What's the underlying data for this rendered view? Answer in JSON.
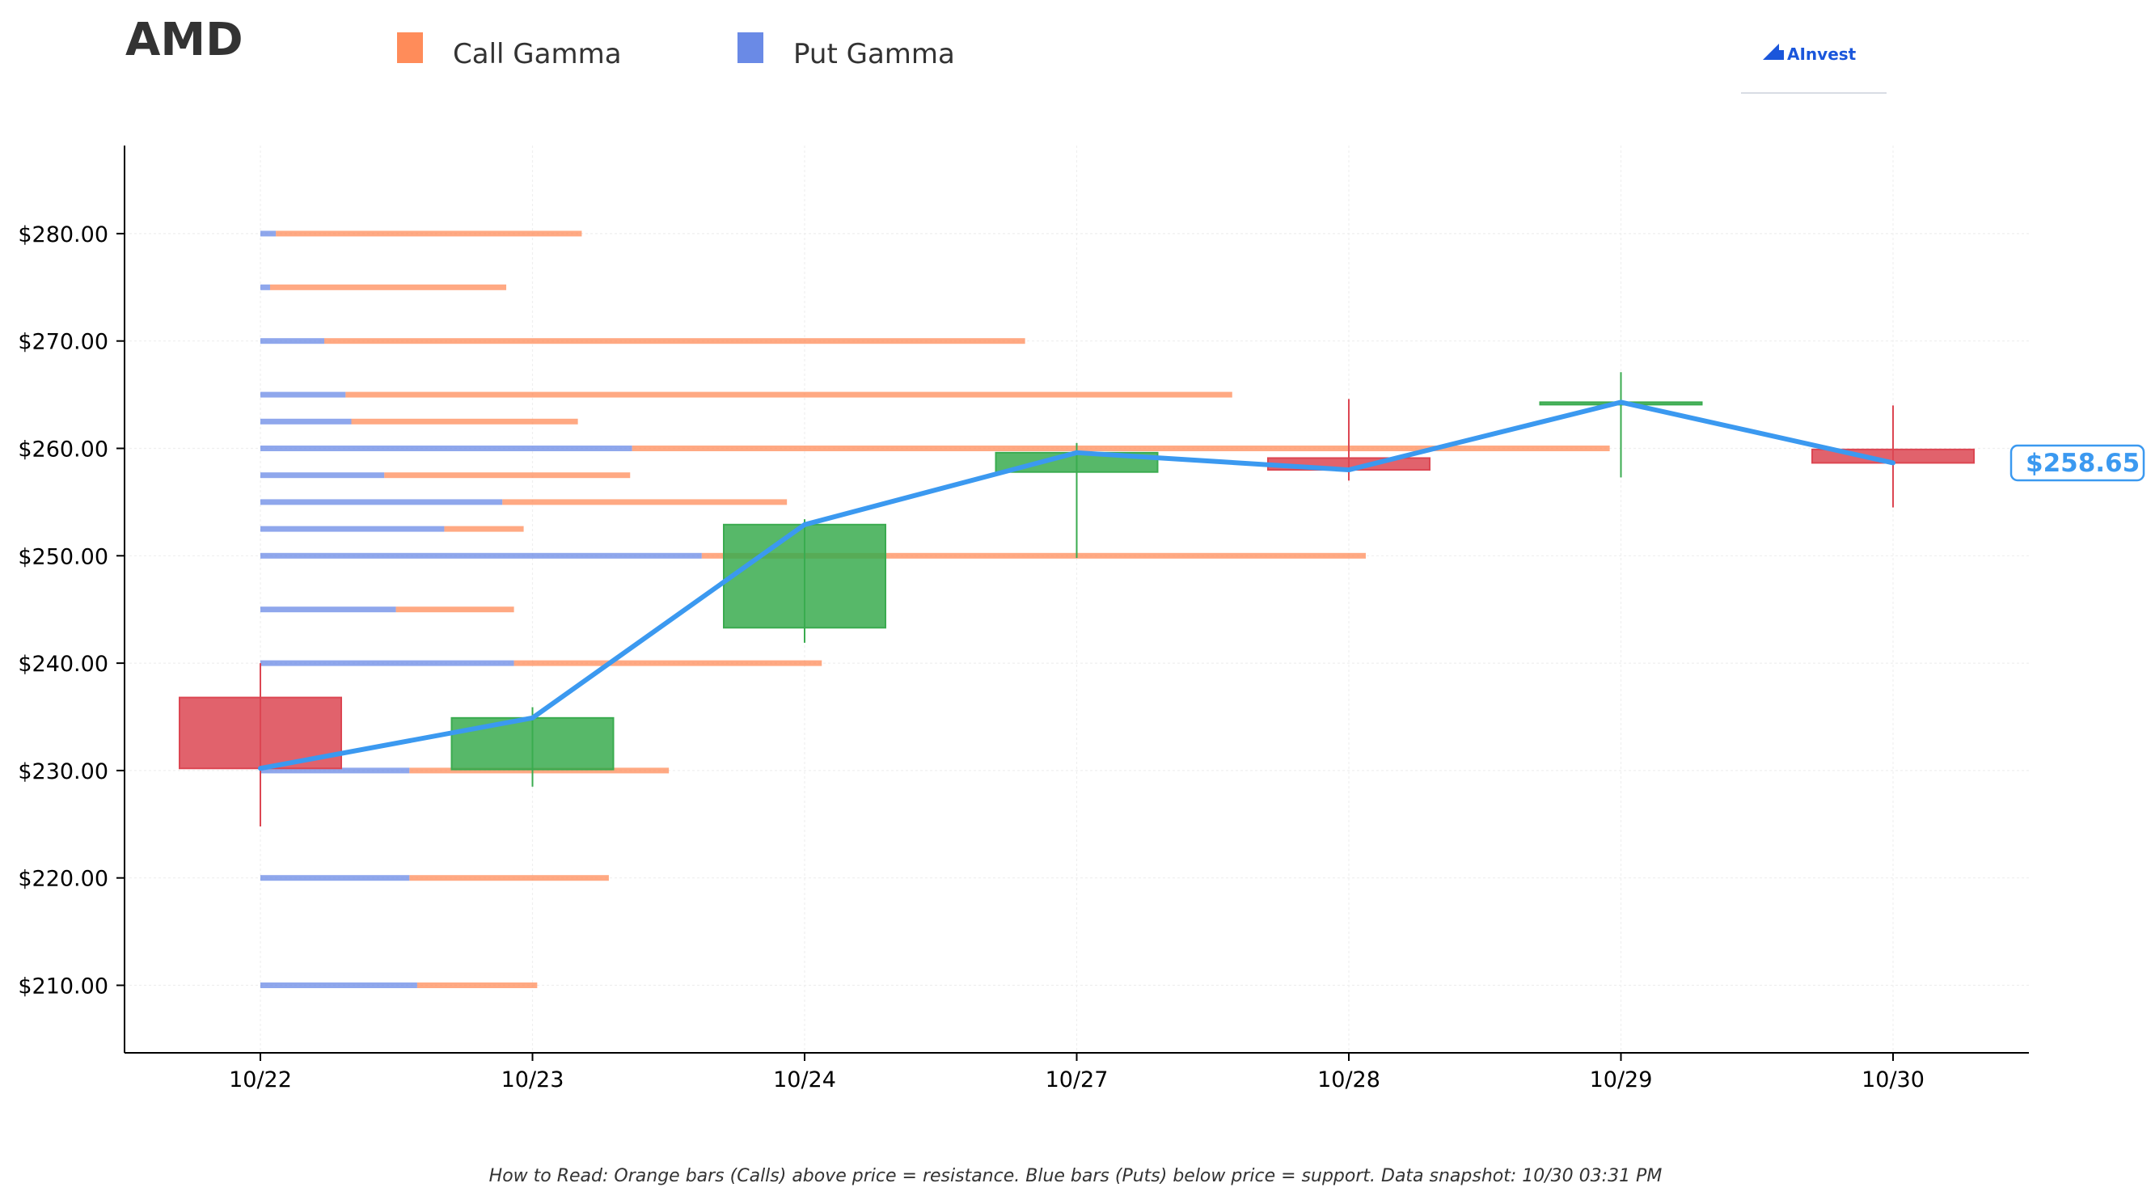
{
  "title": "AMD",
  "legend": [
    {
      "label": "Call Gamma",
      "color": "#ff8c5a"
    },
    {
      "label": "Put Gamma",
      "color": "#6a8ae6"
    }
  ],
  "logo": {
    "text": "AInvest",
    "icon": "ainvest-logo-icon"
  },
  "footer": "How to Read: Orange bars (Calls) above price = resistance. Blue bars (Puts) below price = support. Data snapshot: 10/30 03:31 PM",
  "price_tag": "$258.65",
  "colors": {
    "up": "#3aab4f",
    "down": "#dc4652",
    "price_line": "#3b99f0",
    "call": "#ff8c5a",
    "put": "#6a8ae6"
  },
  "chart_data": {
    "type": "candlestick",
    "ylim": [
      204,
      288
    ],
    "y_ticks": [
      210,
      220,
      230,
      240,
      250,
      260,
      270,
      280
    ],
    "y_tick_labels": [
      "$210.00",
      "$220.00",
      "$230.00",
      "$240.00",
      "$250.00",
      "$260.00",
      "$270.00",
      "$280.00"
    ],
    "categories": [
      "10/22",
      "10/23",
      "10/24",
      "10/27",
      "10/28",
      "10/29",
      "10/30"
    ],
    "ohlc": [
      {
        "date": "10/22",
        "open": 236.8,
        "high": 240.0,
        "low": 224.8,
        "close": 230.2
      },
      {
        "date": "10/23",
        "open": 230.1,
        "high": 235.9,
        "low": 228.5,
        "close": 234.9
      },
      {
        "date": "10/24",
        "open": 243.3,
        "high": 253.4,
        "low": 241.9,
        "close": 252.9
      },
      {
        "date": "10/27",
        "open": 257.8,
        "high": 260.5,
        "low": 249.8,
        "close": 259.6
      },
      {
        "date": "10/28",
        "open": 259.1,
        "high": 264.6,
        "low": 257.0,
        "close": 258.0
      },
      {
        "date": "10/29",
        "open": 264.1,
        "high": 267.1,
        "low": 257.3,
        "close": 264.3
      },
      {
        "date": "10/30",
        "open": 259.9,
        "high": 264.0,
        "low": 254.5,
        "close": 258.65
      }
    ],
    "price_line": [
      230.2,
      234.9,
      252.9,
      259.6,
      258.0,
      264.3,
      258.65
    ],
    "gamma": [
      {
        "strike": 280,
        "put": 0.08,
        "call": 1.58
      },
      {
        "strike": 275,
        "put": 0.05,
        "call": 1.22
      },
      {
        "strike": 270,
        "put": 0.33,
        "call": 3.62
      },
      {
        "strike": 265,
        "put": 0.44,
        "call": 4.58
      },
      {
        "strike": 262.5,
        "put": 0.47,
        "call": 1.17
      },
      {
        "strike": 260,
        "put": 1.92,
        "call": 5.05
      },
      {
        "strike": 257.5,
        "put": 0.64,
        "call": 1.27
      },
      {
        "strike": 255,
        "put": 1.25,
        "call": 1.47
      },
      {
        "strike": 252.5,
        "put": 0.95,
        "call": 0.41
      },
      {
        "strike": 250,
        "put": 2.28,
        "call": 3.43
      },
      {
        "strike": 245,
        "put": 0.7,
        "call": 0.61
      },
      {
        "strike": 240,
        "put": 1.31,
        "call": 1.59
      },
      {
        "strike": 230,
        "put": 0.77,
        "call": 1.34
      },
      {
        "strike": 220,
        "put": 0.77,
        "call": 1.03
      },
      {
        "strike": 210,
        "put": 0.81,
        "call": 0.62
      }
    ]
  }
}
